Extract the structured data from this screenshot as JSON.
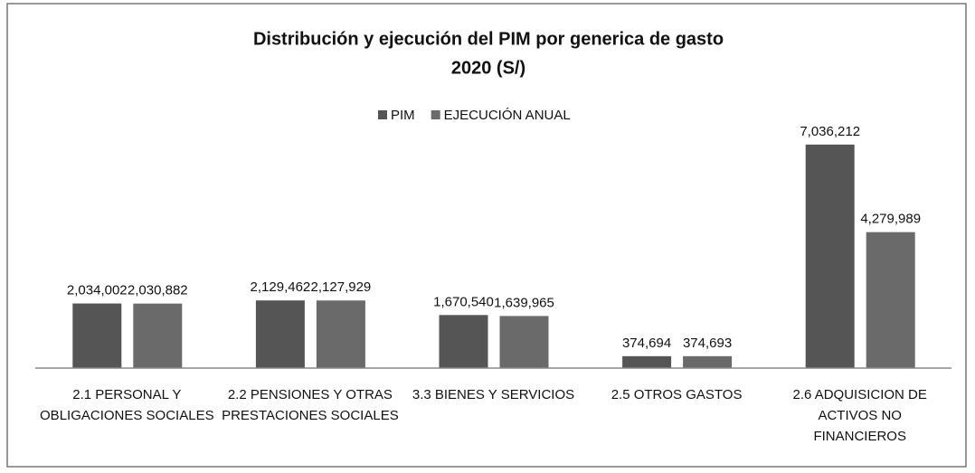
{
  "chart_data": {
    "type": "bar",
    "title": "Distribución y ejecución del PIM por generica de gasto",
    "subtitle": "2020  (S/)",
    "categories": [
      "2.1 PERSONAL Y OBLIGACIONES SOCIALES",
      "2.2 PENSIONES Y OTRAS PRESTACIONES SOCIALES",
      "3.3 BIENES Y SERVICIOS",
      "2.5 OTROS GASTOS",
      "2.6 ADQUISICION DE ACTIVOS NO FINANCIEROS"
    ],
    "series": [
      {
        "name": "PIM",
        "color": "#555555",
        "values": [
          2034002,
          2129462,
          1670540,
          374694,
          7036212
        ],
        "value_labels": [
          "2,034,002",
          "2,129,462",
          "1,670,540",
          "374,694",
          "7,036,212"
        ]
      },
      {
        "name": "EJECUCIÓN ANUAL",
        "color": "#6a6a6a",
        "values": [
          2030882,
          2127929,
          1639965,
          374693,
          4279989
        ],
        "value_labels": [
          "2,030,882",
          "2,127,929",
          "1,639,965",
          "374,693",
          "4,279,989"
        ]
      }
    ],
    "ylim": [
      0,
      8000000
    ],
    "legend": "top"
  }
}
